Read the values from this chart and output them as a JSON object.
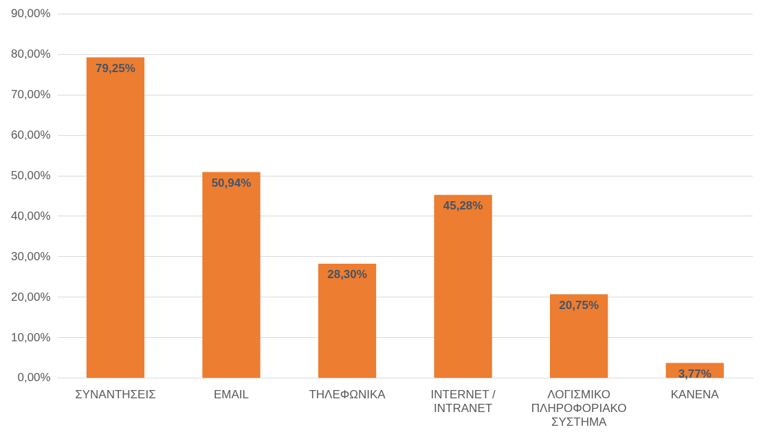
{
  "chart_data": {
    "type": "bar",
    "categories": [
      "ΣΥΝΑΝΤΗΣΕΙΣ",
      "EMAIL",
      "ΤΗΛΕΦΩΝΙΚΑ",
      "INTERNET / INTRANET",
      "ΛΟΓΙΣΜΙΚΟ ΠΛΗΡΟΦΟΡΙΑΚΟ ΣΥΣΤΗΜΑ",
      "ΚΑΝΕΝΑ"
    ],
    "values": [
      79.25,
      50.94,
      28.3,
      45.28,
      20.75,
      3.77
    ],
    "value_labels": [
      "79,25%",
      "50,94%",
      "28,30%",
      "45,28%",
      "20,75%",
      "3,77%"
    ],
    "color": "#ed7d31",
    "ylim": [
      0,
      90
    ],
    "yticks": [
      {
        "value": 0,
        "label": "0,00%"
      },
      {
        "value": 10,
        "label": "10,00%"
      },
      {
        "value": 20,
        "label": "20,00%"
      },
      {
        "value": 30,
        "label": "30,00%"
      },
      {
        "value": 40,
        "label": "40,00%"
      },
      {
        "value": 50,
        "label": "50,00%"
      },
      {
        "value": 60,
        "label": "60,00%"
      },
      {
        "value": 70,
        "label": "70,00%"
      },
      {
        "value": 80,
        "label": "80,00%"
      },
      {
        "value": 90,
        "label": "90,00%"
      }
    ],
    "grid": "y",
    "legend": false
  }
}
